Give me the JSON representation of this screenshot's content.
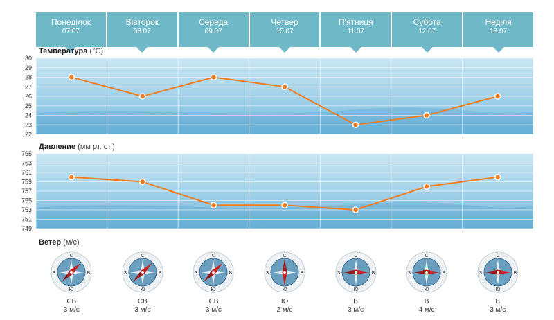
{
  "days": [
    {
      "name": "Понеділок",
      "date": "07.07"
    },
    {
      "name": "Вівторок",
      "date": "08.07"
    },
    {
      "name": "Середа",
      "date": "09.07"
    },
    {
      "name": "Четвер",
      "date": "10.07"
    },
    {
      "name": "П'ятниця",
      "date": "11.07"
    },
    {
      "name": "Субота",
      "date": "12.07"
    },
    {
      "name": "Неділя",
      "date": "13.07"
    }
  ],
  "temperature": {
    "title": "Температура",
    "unit": "(°С)"
  },
  "pressure": {
    "title": "Давление",
    "unit": "(мм рт. ст.)"
  },
  "wind": {
    "title": "Ветер",
    "unit": "(м/с)",
    "compass_labels": {
      "n": "С",
      "s": "Ю",
      "w": "З",
      "e": "В"
    },
    "items": [
      {
        "direction": "СВ",
        "speed": "3 м/с",
        "angle": 45
      },
      {
        "direction": "СВ",
        "speed": "3 м/с",
        "angle": 45
      },
      {
        "direction": "СВ",
        "speed": "3 м/с",
        "angle": 45
      },
      {
        "direction": "Ю",
        "speed": "2 м/с",
        "angle": 180
      },
      {
        "direction": "В",
        "speed": "3 м/с",
        "angle": 90
      },
      {
        "direction": "В",
        "speed": "4 м/с",
        "angle": 90
      },
      {
        "direction": "В",
        "speed": "3 м/с",
        "angle": 90
      }
    ]
  },
  "colors": {
    "line": "#f07c1e",
    "tab": "#6fb8c8",
    "needle": "#c8201e"
  },
  "chart_data": [
    {
      "type": "line",
      "title": "Температура",
      "ylabel": "(°С)",
      "categories": [
        "07.07",
        "08.07",
        "09.07",
        "10.07",
        "11.07",
        "12.07",
        "13.07"
      ],
      "values": [
        28,
        26,
        28,
        27,
        23,
        24,
        26
      ],
      "ylim": [
        22,
        30
      ],
      "yticks": [
        30,
        29,
        28,
        27,
        26,
        25,
        24,
        23,
        22
      ],
      "grid": true
    },
    {
      "type": "line",
      "title": "Давление",
      "ylabel": "(мм рт. ст.)",
      "categories": [
        "07.07",
        "08.07",
        "09.07",
        "10.07",
        "11.07",
        "12.07",
        "13.07"
      ],
      "values": [
        760,
        759,
        754,
        754,
        753,
        758,
        760
      ],
      "ylim": [
        749,
        765
      ],
      "yticks": [
        765,
        763,
        761,
        759,
        757,
        755,
        753,
        751,
        749
      ],
      "grid": true
    }
  ]
}
